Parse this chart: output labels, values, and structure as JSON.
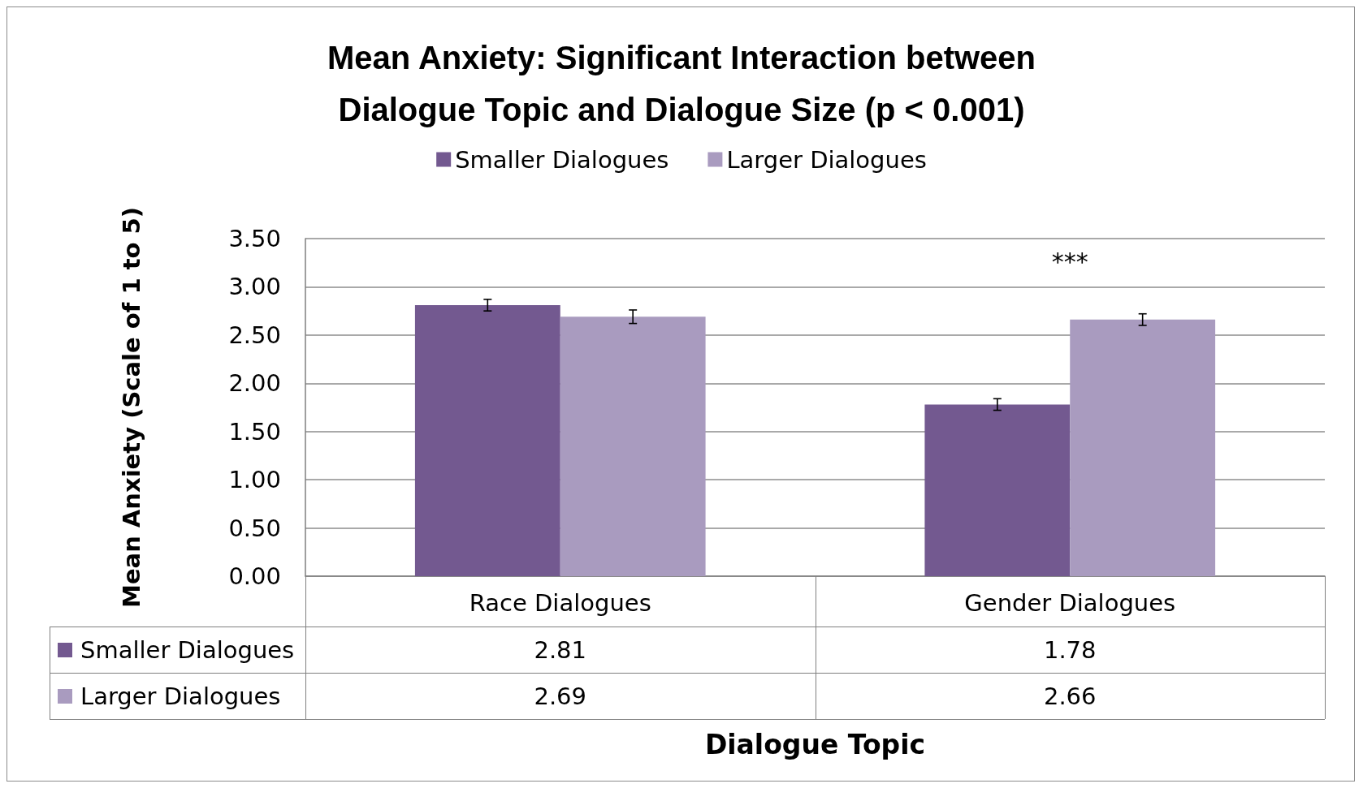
{
  "chart_data": {
    "type": "bar",
    "title": "Mean Anxiety: Significant Interaction between\nDialogue Topic and Dialogue Size (p < 0.001)",
    "xlabel": "Dialogue Topic",
    "ylabel": "Mean Anxiety (Scale of 1 to 5)",
    "categories": [
      "Race Dialogues",
      "Gender Dialogues"
    ],
    "series": [
      {
        "name": "Smaller Dialogues",
        "color": "#735990",
        "values": [
          2.81,
          1.78
        ],
        "errors": [
          0.06,
          0.06
        ]
      },
      {
        "name": "Larger Dialogues",
        "color": "#a99bbf",
        "values": [
          2.69,
          2.66
        ],
        "errors": [
          0.07,
          0.06
        ]
      }
    ],
    "ylim": [
      0,
      3.5
    ],
    "yticks": [
      {
        "value": 0,
        "label": "0.00"
      },
      {
        "value": 0.5,
        "label": "0.50"
      },
      {
        "value": 1,
        "label": "1.00"
      },
      {
        "value": 1.5,
        "label": "1.50"
      },
      {
        "value": 2,
        "label": "2.00"
      },
      {
        "value": 2.5,
        "label": "2.50"
      },
      {
        "value": 3,
        "label": "3.00"
      },
      {
        "value": 3.5,
        "label": "3.50"
      }
    ],
    "grid": "y",
    "legend": "top",
    "data_labels": true,
    "annotations": [
      "***"
    ]
  }
}
